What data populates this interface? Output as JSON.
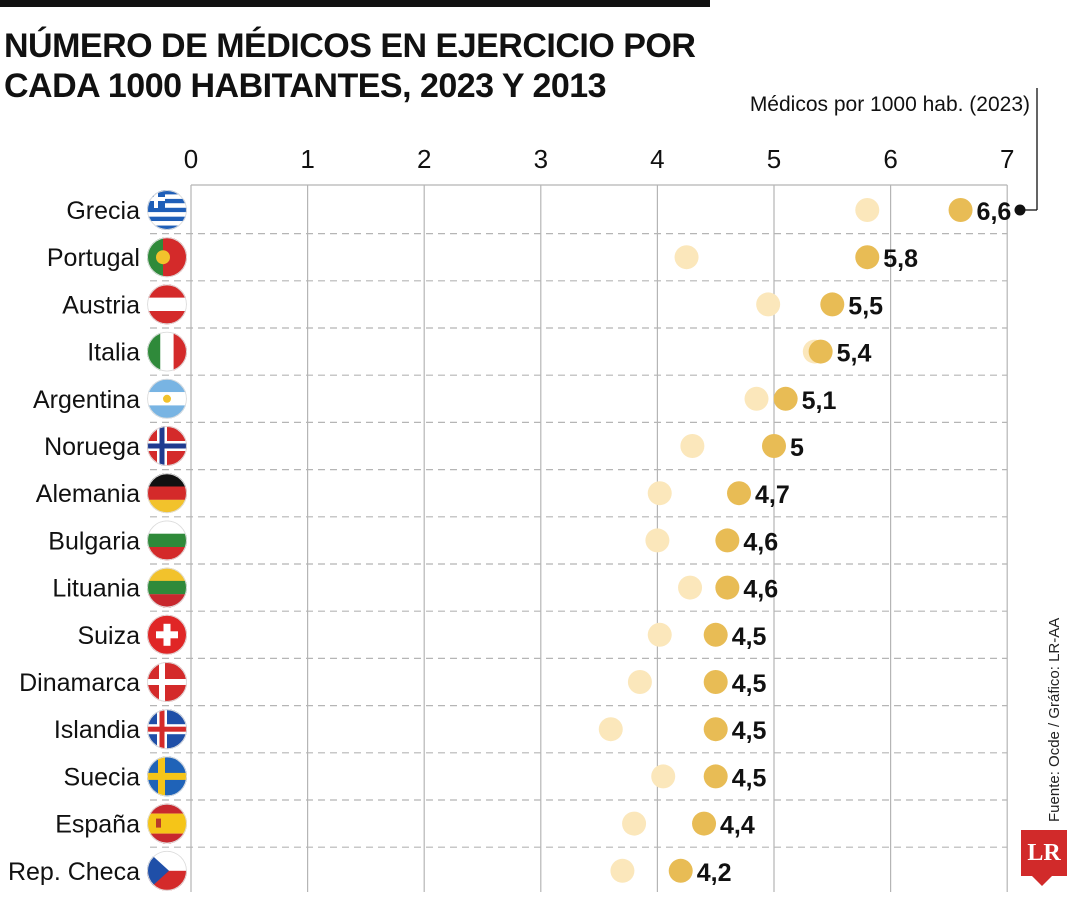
{
  "chart_data": {
    "type": "scatter",
    "title_line1": "NÚMERO DE MÉDICOS EN EJERCICIO POR",
    "title_line2": "CADA 1000 HABITANTES, 2023 Y 2013",
    "annotation": "Médicos por 1000 hab. (2023)",
    "source": "Fuente: Ocde / Gráfico: LR-AA",
    "logo": "LR",
    "xlim": [
      0,
      7
    ],
    "xticks": [
      "0",
      "1",
      "2",
      "3",
      "4",
      "5",
      "6",
      "7"
    ],
    "grid": true,
    "colors": {
      "y2023": "#e8bc55",
      "y2013": "#fbe7bb",
      "grid": "#b5b5b5"
    },
    "categories": [
      "Grecia",
      "Portugal",
      "Austria",
      "Italia",
      "Argentina",
      "Noruega",
      "Alemania",
      "Bulgaria",
      "Lituania",
      "Suiza",
      "Dinamarca",
      "Islandia",
      "Suecia",
      "España",
      "Rep. Checa"
    ],
    "flags": [
      "greece-flag-icon",
      "portugal-flag-icon",
      "austria-flag-icon",
      "italy-flag-icon",
      "argentina-flag-icon",
      "norway-flag-icon",
      "germany-flag-icon",
      "bulgaria-flag-icon",
      "lithuania-flag-icon",
      "switzerland-flag-icon",
      "denmark-flag-icon",
      "iceland-flag-icon",
      "sweden-flag-icon",
      "spain-flag-icon",
      "czech-flag-icon"
    ],
    "series": [
      {
        "key": "y2023",
        "values": [
          6.6,
          5.8,
          5.5,
          5.4,
          5.1,
          5.0,
          4.7,
          4.6,
          4.6,
          4.5,
          4.5,
          4.5,
          4.5,
          4.4,
          4.2
        ]
      },
      {
        "key": "y2013",
        "values": [
          5.8,
          4.25,
          4.95,
          5.35,
          4.85,
          4.3,
          4.02,
          4.0,
          4.28,
          4.02,
          3.85,
          3.6,
          4.05,
          3.8,
          3.7
        ]
      }
    ],
    "labels": [
      "6,6",
      "5,8",
      "5,5",
      "5,4",
      "5,1",
      "5",
      "4,7",
      "4,6",
      "4,6",
      "4,5",
      "4,5",
      "4,5",
      "4,5",
      "4,4",
      "4,2"
    ]
  }
}
